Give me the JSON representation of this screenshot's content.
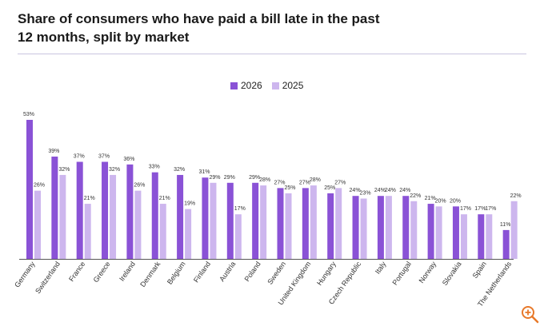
{
  "title": "Share of consumers who have paid a bill late in the past\n12 months, split by market",
  "colors": {
    "series_2026": "#8a52d6",
    "series_2025": "#cdb6ee",
    "axis": "#555555",
    "accent": "#e8792a"
  },
  "legend": {
    "s2026": "2026",
    "s2025": "2025"
  },
  "zoom_icon": "zoom-in-icon",
  "chart_data": {
    "type": "bar",
    "title": "Share of consumers who have paid a bill late in the past 12 months, split by market",
    "xlabel": "",
    "ylabel": "",
    "ylim": [
      0,
      53
    ],
    "grid": false,
    "legend_position": "top-center",
    "categories": [
      "Germany",
      "Switzerland",
      "France",
      "Greece",
      "Ireland",
      "Denmark",
      "Belgium",
      "Finland",
      "Austria",
      "Poland",
      "Sweden",
      "United Kingdom",
      "Hungary",
      "Czech Republic",
      "Italy",
      "Portugal",
      "Norway",
      "Slovakia",
      "Spain",
      "The Netherlands"
    ],
    "series": [
      {
        "name": "2026",
        "values": [
          53,
          39,
          37,
          37,
          36,
          33,
          32,
          31,
          29,
          29,
          27,
          27,
          25,
          24,
          24,
          24,
          21,
          20,
          17,
          11
        ]
      },
      {
        "name": "2025",
        "values": [
          26,
          32,
          21,
          32,
          26,
          21,
          19,
          29,
          17,
          28,
          25,
          28,
          27,
          23,
          24,
          22,
          20,
          17,
          17,
          22
        ]
      }
    ],
    "value_labels": [
      [
        "53%",
        "39%",
        "37%",
        "37%",
        "36%",
        "33%",
        "32%",
        "31%",
        "29%",
        "29%",
        "27%",
        "27%",
        "25%",
        "24%",
        "24%",
        "24%",
        "21%",
        "20%",
        "17%",
        "11%"
      ],
      [
        "26%",
        "32%",
        "21%",
        "32%",
        "26%",
        "21%",
        "19%",
        "29%",
        "17%",
        "28%",
        "25%",
        "28%",
        "27%",
        "23%",
        "24%",
        "22%",
        "20%",
        "17%",
        "17%",
        "22%"
      ]
    ]
  }
}
